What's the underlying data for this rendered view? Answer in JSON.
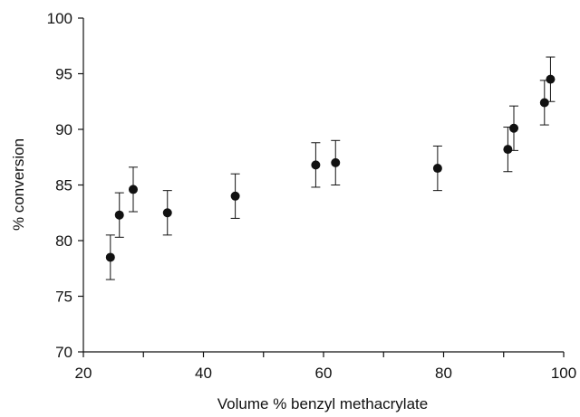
{
  "chart_data": {
    "type": "scatter",
    "title": "",
    "xlabel": "Volume % benzyl methacrylate",
    "ylabel": "% conversion",
    "xlim": [
      20,
      100
    ],
    "ylim": [
      70,
      100
    ],
    "xticks": [
      20,
      40,
      60,
      80,
      100
    ],
    "yticks": [
      70,
      75,
      80,
      85,
      90,
      95,
      100
    ],
    "grid": false,
    "legend": "none",
    "marker_color": "#111111",
    "series": [
      {
        "points": [
          {
            "x": 24.5,
            "y": 78.5,
            "err": 2.0
          },
          {
            "x": 26.0,
            "y": 82.3,
            "err": 2.0
          },
          {
            "x": 28.3,
            "y": 84.6,
            "err": 2.0
          },
          {
            "x": 34.0,
            "y": 82.5,
            "err": 2.0
          },
          {
            "x": 45.3,
            "y": 84.0,
            "err": 2.0
          },
          {
            "x": 58.7,
            "y": 86.8,
            "err": 2.0
          },
          {
            "x": 62.0,
            "y": 87.0,
            "err": 2.0
          },
          {
            "x": 79.0,
            "y": 86.5,
            "err": 2.0
          },
          {
            "x": 90.7,
            "y": 88.2,
            "err": 2.0
          },
          {
            "x": 91.7,
            "y": 90.1,
            "err": 2.0
          },
          {
            "x": 96.8,
            "y": 92.4,
            "err": 2.0
          },
          {
            "x": 97.8,
            "y": 94.5,
            "err": 2.0
          }
        ]
      }
    ]
  }
}
